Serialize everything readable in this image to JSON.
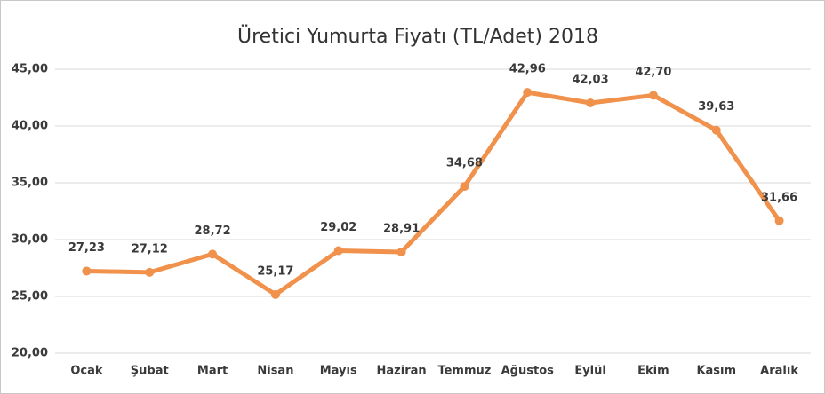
{
  "chart_data": {
    "type": "line",
    "title": "Üretici Yumurta Fiyatı (TL/Adet) 2018",
    "categories": [
      "Ocak",
      "Şubat",
      "Mart",
      "Nisan",
      "Mayıs",
      "Haziran",
      "Temmuz",
      "Ağustos",
      "Eylül",
      "Ekim",
      "Kasım",
      "Aralık"
    ],
    "series": [
      {
        "color": "#f0914c",
        "values": [
          27.23,
          27.12,
          28.72,
          25.17,
          29.02,
          28.91,
          34.68,
          42.96,
          42.03,
          42.7,
          39.63,
          31.66
        ],
        "value_labels": [
          "27,23",
          "27,12",
          "28,72",
          "25,17",
          "29,02",
          "28,91",
          "34,68",
          "42,96",
          "42,03",
          "42,70",
          "39,63",
          "31,66"
        ]
      }
    ],
    "ylim": [
      20,
      45
    ],
    "yticks": [
      {
        "value": 20,
        "label": "20,00"
      },
      {
        "value": 25,
        "label": "25,00"
      },
      {
        "value": 30,
        "label": "30,00"
      },
      {
        "value": 35,
        "label": "35,00"
      },
      {
        "value": 40,
        "label": "40,00"
      },
      {
        "value": 45,
        "label": "45,00"
      }
    ],
    "grid": true
  }
}
